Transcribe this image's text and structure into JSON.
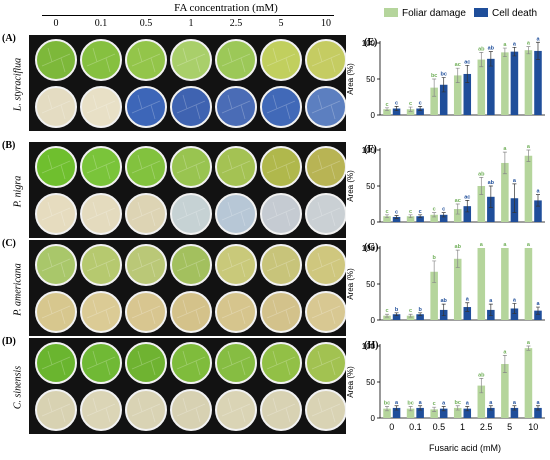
{
  "header": {
    "title": "FA concentration (mM)",
    "concentrations": [
      "0",
      "0.1",
      "0.5",
      "1",
      "2.5",
      "5",
      "10"
    ]
  },
  "legend": [
    {
      "label": "Foliar damage",
      "color": "#b5d59c"
    },
    {
      "label": "Cell death",
      "color": "#1f4e9a"
    }
  ],
  "photo_panels": [
    {
      "letter": "(A)",
      "species": "L. styraciflua",
      "top_leaves": [
        "#7db83a",
        "#86c040",
        "#93c54a",
        "#a9cf6a",
        "#9cc858",
        "#c1cf5e",
        "#c5cc62"
      ],
      "bottom_leaves": [
        "#e4dcc2",
        "#e8e0c6",
        "#3d66b8",
        "#3f63b1",
        "#4a6cb6",
        "#4169b8",
        "#5c7fc0"
      ]
    },
    {
      "letter": "(B)",
      "species": "P. nigra",
      "top_leaves": [
        "#6fbf2e",
        "#7ac43a",
        "#82c23e",
        "#99c450",
        "#a4c253",
        "#b0b84c",
        "#b8b454"
      ],
      "bottom_leaves": [
        "#e6dcbf",
        "#e4dbbe",
        "#ddd4b4",
        "#c6d2d4",
        "#b7c7d6",
        "#c5cbd2",
        "#cad0d4"
      ]
    },
    {
      "letter": "(C)",
      "species": "P. americana",
      "top_leaves": [
        "#a9c76a",
        "#b6c96f",
        "#bac877",
        "#a3c05e",
        "#c9c97a",
        "#c8c47a",
        "#cfc77e"
      ],
      "bottom_leaves": [
        "#d7c78e",
        "#dbcb95",
        "#d8c690",
        "#d4c28a",
        "#d6c58d",
        "#d3c28b",
        "#d8c892"
      ]
    },
    {
      "letter": "(D)",
      "species": "C. sinensis",
      "top_leaves": [
        "#6ab52f",
        "#70b935",
        "#6fb331",
        "#7fbc3c",
        "#86bd42",
        "#92c046",
        "#a2c251"
      ],
      "bottom_leaves": [
        "#d8d2b2",
        "#dbd5b6",
        "#d9d3b4",
        "#d7d1b2",
        "#dad4b5",
        "#d8d2b3",
        "#d9d3b4"
      ]
    }
  ],
  "chart_data": [
    {
      "type": "bar",
      "letter": "(E)",
      "ylabel": "Area (%)",
      "ylim": [
        0,
        100
      ],
      "yticks": [
        "0",
        "50",
        "100"
      ],
      "categories": [
        "0",
        "0.1",
        "0.5",
        "1",
        "2.5",
        "5",
        "10"
      ],
      "series": [
        {
          "name": "Foliar damage",
          "values": [
            8,
            8,
            38,
            55,
            77,
            87,
            90
          ],
          "errors": [
            2,
            3,
            12,
            10,
            10,
            6,
            5
          ],
          "letters": [
            "c",
            "c",
            "bc",
            "ac",
            "ab",
            "a",
            "a"
          ]
        },
        {
          "name": "Cell death",
          "values": [
            9,
            9,
            42,
            57,
            78,
            88,
            89
          ],
          "errors": [
            3,
            3,
            10,
            12,
            10,
            6,
            12
          ],
          "letters": [
            "c",
            "c",
            "bc",
            "ac",
            "ab",
            "a",
            "a"
          ]
        }
      ]
    },
    {
      "type": "bar",
      "letter": "(F)",
      "ylabel": "Area (%)",
      "ylim": [
        0,
        100
      ],
      "yticks": [
        "0",
        "50",
        "100"
      ],
      "categories": [
        "0",
        "0.1",
        "0.5",
        "1",
        "2.5",
        "5",
        "10"
      ],
      "series": [
        {
          "name": "Foliar damage",
          "values": [
            8,
            8,
            10,
            18,
            50,
            82,
            92
          ],
          "errors": [
            2,
            2,
            3,
            7,
            12,
            15,
            8
          ],
          "letters": [
            "c",
            "c",
            "c",
            "ac",
            "ab",
            "a",
            "a"
          ]
        },
        {
          "name": "Cell death",
          "values": [
            7,
            8,
            10,
            22,
            35,
            33,
            30
          ],
          "errors": [
            2,
            2,
            3,
            8,
            15,
            20,
            8
          ],
          "letters": [
            "c",
            "c",
            "c",
            "ac",
            "ab",
            "a",
            "a"
          ]
        }
      ]
    },
    {
      "type": "bar",
      "letter": "(G)",
      "ylabel": "Area (%)",
      "ylim": [
        0,
        100
      ],
      "yticks": [
        "0",
        "50",
        "100"
      ],
      "categories": [
        "0",
        "0.1",
        "0.5",
        "1",
        "2.5",
        "5",
        "10"
      ],
      "series": [
        {
          "name": "Foliar damage",
          "values": [
            6,
            6,
            67,
            85,
            100,
            100,
            100
          ],
          "errors": [
            2,
            2,
            15,
            12,
            0,
            0,
            0
          ],
          "letters": [
            "c",
            "c",
            "b",
            "ab",
            "a",
            "a",
            "a"
          ]
        },
        {
          "name": "Cell death",
          "values": [
            8,
            8,
            14,
            18,
            14,
            16,
            13
          ],
          "errors": [
            2,
            2,
            8,
            6,
            8,
            7,
            5
          ],
          "letters": [
            "b",
            "b",
            "ab",
            "a",
            "a",
            "a",
            "a"
          ]
        }
      ]
    },
    {
      "type": "bar",
      "letter": "(H)",
      "ylabel": "Area (%)",
      "ylim": [
        0,
        100
      ],
      "yticks": [
        "0",
        "50",
        "100"
      ],
      "xlabel": "Fusaric acid (mM)",
      "categories": [
        "0",
        "0.1",
        "0.5",
        "1",
        "2.5",
        "5",
        "10"
      ],
      "series": [
        {
          "name": "Foliar damage",
          "values": [
            13,
            13,
            12,
            14,
            45,
            75,
            97
          ],
          "errors": [
            3,
            3,
            3,
            3,
            10,
            12,
            3
          ],
          "letters": [
            "bc",
            "bc",
            "c",
            "bc",
            "ab",
            "a",
            "a"
          ]
        },
        {
          "name": "Cell death",
          "values": [
            14,
            14,
            13,
            13,
            14,
            14,
            14
          ],
          "errors": [
            3,
            3,
            3,
            3,
            3,
            3,
            3
          ],
          "letters": [
            "a",
            "a",
            "a",
            "a",
            "a",
            "a",
            "a"
          ]
        }
      ]
    }
  ]
}
